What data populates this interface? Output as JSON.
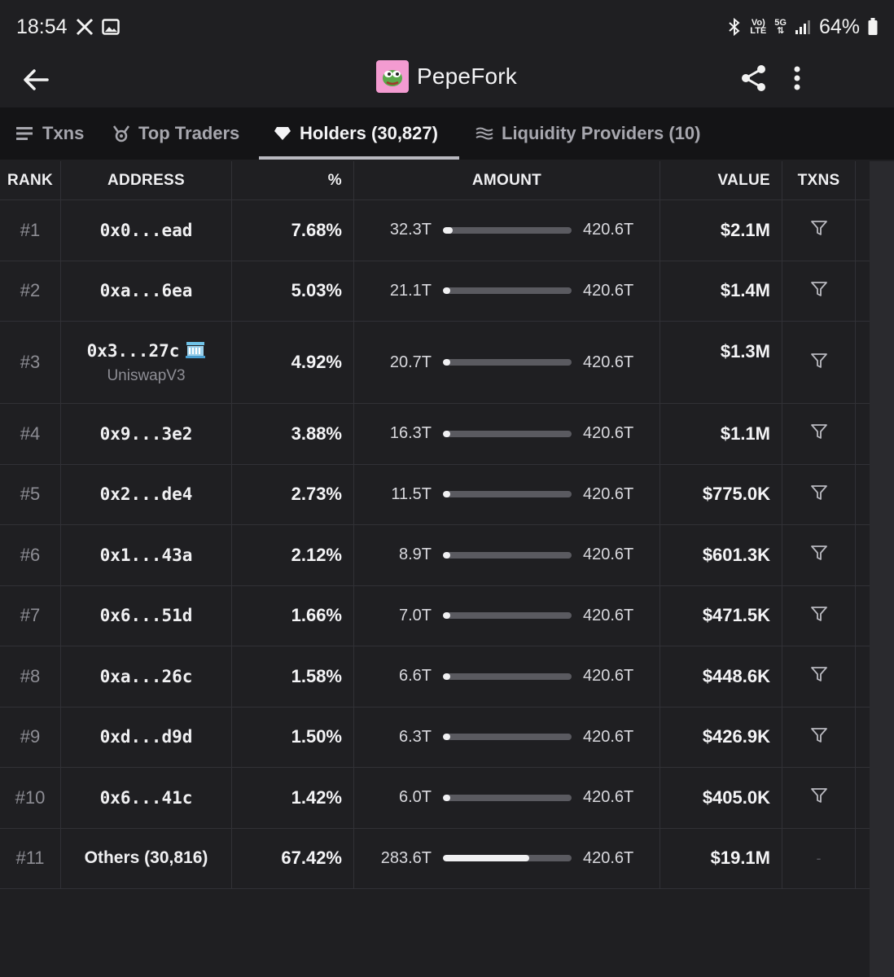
{
  "status_bar": {
    "time": "18:54",
    "net_top": "Vo)",
    "net_bottom": "LTE",
    "net_5g": "5G",
    "battery": "64%"
  },
  "header": {
    "title": "PepeFork"
  },
  "tabs": [
    {
      "label": "Txns",
      "icon": "list-icon"
    },
    {
      "label": "Top Traders",
      "icon": "trophy-icon"
    },
    {
      "label": "Holders (30,827)",
      "icon": "diamond-icon",
      "active": true
    },
    {
      "label": "Liquidity Providers (10)",
      "icon": "waves-icon"
    }
  ],
  "columns": [
    "RANK",
    "ADDRESS",
    "%",
    "AMOUNT",
    "VALUE",
    "TXNS"
  ],
  "rows": [
    {
      "rank": "#1",
      "address": "0x0...ead",
      "pct": "7.68%",
      "amount": "32.3T",
      "total": "420.6T",
      "fill": 0.077,
      "value": "$2.1M"
    },
    {
      "rank": "#2",
      "address": "0xa...6ea",
      "pct": "5.03%",
      "amount": "21.1T",
      "total": "420.6T",
      "fill": 0.05,
      "value": "$1.4M"
    },
    {
      "rank": "#3",
      "address": "0x3...27c",
      "sublabel": "UniswapV3",
      "pct": "4.92%",
      "amount": "20.7T",
      "total": "420.6T",
      "fill": 0.049,
      "value": "$1.3M"
    },
    {
      "rank": "#4",
      "address": "0x9...3e2",
      "pct": "3.88%",
      "amount": "16.3T",
      "total": "420.6T",
      "fill": 0.039,
      "value": "$1.1M"
    },
    {
      "rank": "#5",
      "address": "0x2...de4",
      "pct": "2.73%",
      "amount": "11.5T",
      "total": "420.6T",
      "fill": 0.027,
      "value": "$775.0K"
    },
    {
      "rank": "#6",
      "address": "0x1...43a",
      "pct": "2.12%",
      "amount": "8.9T",
      "total": "420.6T",
      "fill": 0.021,
      "value": "$601.3K"
    },
    {
      "rank": "#7",
      "address": "0x6...51d",
      "pct": "1.66%",
      "amount": "7.0T",
      "total": "420.6T",
      "fill": 0.017,
      "value": "$471.5K"
    },
    {
      "rank": "#8",
      "address": "0xa...26c",
      "pct": "1.58%",
      "amount": "6.6T",
      "total": "420.6T",
      "fill": 0.016,
      "value": "$448.6K"
    },
    {
      "rank": "#9",
      "address": "0xd...d9d",
      "pct": "1.50%",
      "amount": "6.3T",
      "total": "420.6T",
      "fill": 0.015,
      "value": "$426.9K"
    },
    {
      "rank": "#10",
      "address": "0x6...41c",
      "pct": "1.42%",
      "amount": "6.0T",
      "total": "420.6T",
      "fill": 0.014,
      "value": "$405.0K"
    },
    {
      "rank": "#11",
      "others": "Others (30,816)",
      "pct": "67.42%",
      "amount": "283.6T",
      "total": "420.6T",
      "fill": 0.674,
      "value": "$19.1M",
      "txns": "-"
    }
  ]
}
